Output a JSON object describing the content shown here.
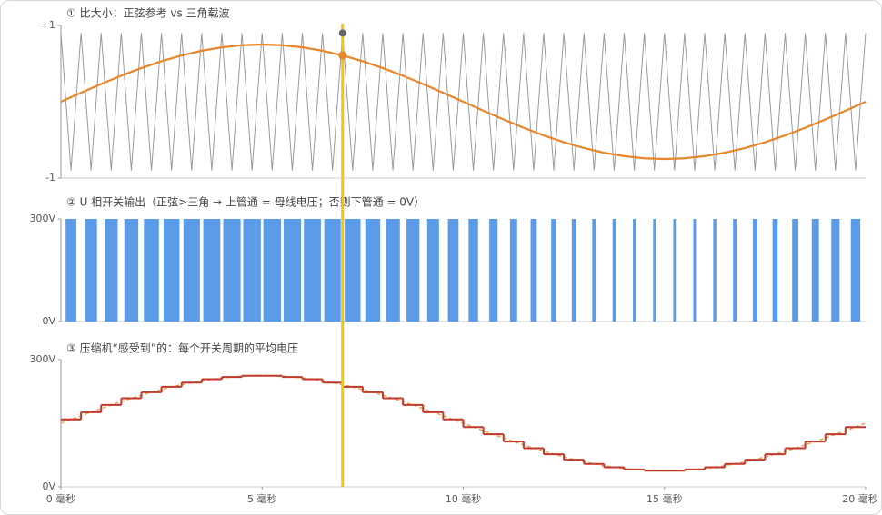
{
  "chart_data": [
    {
      "type": "line",
      "title": "① 比大小：正弦参考 vs 三角载波",
      "xlim": [
        0,
        20
      ],
      "ylim": [
        -1,
        1
      ],
      "yticks": [
        {
          "value": 1,
          "label": "+1"
        },
        -1
      ],
      "cursor_x": 7,
      "series": [
        {
          "color": "#9a9a9a",
          "x": [
            0,
            0.25,
            0.5,
            0.75,
            1,
            1.25,
            1.5,
            1.75,
            2,
            2.25,
            2.5,
            2.75,
            3,
            3.25,
            3.5,
            3.75,
            4,
            4.25,
            4.5,
            4.75,
            5,
            5.25,
            5.5,
            5.75,
            6,
            6.25,
            6.5,
            6.75,
            7,
            7.25,
            7.5,
            7.75,
            8,
            8.25,
            8.5,
            8.75,
            9,
            9.25,
            9.5,
            9.75,
            10,
            10.25,
            10.5,
            10.75,
            11,
            11.25,
            11.5,
            11.75,
            12,
            12.25,
            12.5,
            12.75,
            13,
            13.25,
            13.5,
            13.75,
            14,
            14.25,
            14.5,
            14.75,
            15,
            15.25,
            15.5,
            15.75,
            16,
            16.25,
            16.5,
            16.75,
            17,
            17.25,
            17.5,
            17.75,
            18,
            18.25,
            18.5,
            18.75,
            19,
            19.25,
            19.5,
            19.75,
            20
          ],
          "values": [
            0.9,
            -0.9,
            0.9,
            -0.9,
            0.9,
            -0.9,
            0.9,
            -0.9,
            0.9,
            -0.9,
            0.9,
            -0.9,
            0.9,
            -0.9,
            0.9,
            -0.9,
            0.9,
            -0.9,
            0.9,
            -0.9,
            0.9,
            -0.9,
            0.9,
            -0.9,
            0.9,
            -0.9,
            0.9,
            -0.9,
            0.9,
            -0.9,
            0.9,
            -0.9,
            0.9,
            -0.9,
            0.9,
            -0.9,
            0.9,
            -0.9,
            0.9,
            -0.9,
            0.9,
            -0.9,
            0.9,
            -0.9,
            0.9,
            -0.9,
            0.9,
            -0.9,
            0.9,
            -0.9,
            0.9,
            -0.9,
            0.9,
            -0.9,
            0.9,
            -0.9,
            0.9,
            -0.9,
            0.9,
            -0.9,
            0.9,
            -0.9,
            0.9,
            -0.9,
            0.9,
            -0.9,
            0.9,
            -0.9,
            0.9,
            -0.9,
            0.9,
            -0.9,
            0.9,
            -0.9,
            0.9,
            -0.9,
            0.9,
            -0.9,
            0.9,
            -0.9,
            0.9
          ]
        },
        {
          "color": "#e8862a",
          "x": [
            0,
            0.5,
            1,
            1.5,
            2,
            2.5,
            3,
            3.5,
            4,
            4.5,
            5,
            5.5,
            6,
            6.5,
            7,
            7.5,
            8,
            8.5,
            9,
            9.5,
            10,
            10.5,
            11,
            11.5,
            12,
            12.5,
            13,
            13.5,
            14,
            14.5,
            15,
            15.5,
            16,
            16.5,
            17,
            17.5,
            18,
            18.5,
            19,
            19.5,
            20
          ],
          "values": [
            0,
            0.117,
            0.232,
            0.341,
            0.441,
            0.53,
            0.607,
            0.668,
            0.713,
            0.741,
            0.75,
            0.741,
            0.713,
            0.668,
            0.607,
            0.53,
            0.441,
            0.341,
            0.232,
            0.117,
            0,
            -0.117,
            -0.232,
            -0.341,
            -0.441,
            -0.53,
            -0.607,
            -0.668,
            -0.713,
            -0.741,
            -0.75,
            -0.741,
            -0.713,
            -0.668,
            -0.607,
            -0.53,
            -0.441,
            -0.341,
            -0.232,
            -0.117,
            0
          ]
        }
      ]
    },
    {
      "type": "pulse",
      "title": "② U 相开关输出（正弦>三角 → 上管通 = 母线电压；否则下管通 = 0V）",
      "xlim": [
        0,
        20
      ],
      "ylim": [
        0,
        300
      ],
      "yticks": [
        {
          "value": 300,
          "label": "300V"
        },
        {
          "value": 0,
          "label": "0V"
        }
      ],
      "color": "#5b9be8",
      "x": [
        0.25,
        0.75,
        1.25,
        1.75,
        2.25,
        2.75,
        3.25,
        3.75,
        4.25,
        4.75,
        5.25,
        5.75,
        6.25,
        6.75,
        7.25,
        7.75,
        8.25,
        8.75,
        9.25,
        9.75,
        10.25,
        10.75,
        11.25,
        11.75,
        12.25,
        12.75,
        13.25,
        13.75,
        14.25,
        14.75,
        15.25,
        15.75,
        16.25,
        16.75,
        17.25,
        17.75,
        18.25,
        18.75,
        19.25,
        19.75
      ],
      "widths": [
        0.265,
        0.294,
        0.322,
        0.348,
        0.372,
        0.393,
        0.41,
        0.423,
        0.432,
        0.437,
        0.437,
        0.432,
        0.423,
        0.41,
        0.393,
        0.372,
        0.348,
        0.322,
        0.294,
        0.265,
        0.235,
        0.206,
        0.178,
        0.152,
        0.128,
        0.107,
        0.09,
        0.077,
        0.068,
        0.063,
        0.063,
        0.068,
        0.077,
        0.09,
        0.107,
        0.128,
        0.152,
        0.178,
        0.206,
        0.235
      ],
      "values": [
        300,
        300,
        300,
        300,
        300,
        300,
        300,
        300,
        300,
        300,
        300,
        300,
        300,
        300,
        300,
        300,
        300,
        300,
        300,
        300,
        300,
        300,
        300,
        300,
        300,
        300,
        300,
        300,
        300,
        300,
        300,
        300,
        300,
        300,
        300,
        300,
        300,
        300,
        300,
        300
      ]
    },
    {
      "type": "step",
      "title": "③ 压缩机“感受到”的：每个开关周期的平均电压",
      "xlim": [
        0,
        20
      ],
      "ylim": [
        0,
        300
      ],
      "yticks": [
        {
          "value": 300,
          "label": "300V"
        },
        {
          "value": 0,
          "label": "0V"
        }
      ],
      "xticks": [
        {
          "value": 0,
          "label": "0 毫秒"
        },
        {
          "value": 5,
          "label": "5 毫秒"
        },
        {
          "value": 10,
          "label": "10 毫秒"
        },
        {
          "value": 15,
          "label": "15 毫秒"
        },
        {
          "value": 20,
          "label": "20 毫秒"
        }
      ],
      "series": [
        {
          "color": "#c0392b",
          "x": [
            0,
            0.5,
            1,
            1.5,
            2,
            2.5,
            3,
            3.5,
            4,
            4.5,
            5,
            5.5,
            6,
            6.5,
            7,
            7.5,
            8,
            8.5,
            9,
            9.5,
            10,
            10.5,
            11,
            11.5,
            12,
            12.5,
            13,
            13.5,
            14,
            14.5,
            15,
            15.5,
            16,
            16.5,
            17,
            17.5,
            18,
            18.5,
            19,
            19.5
          ],
          "values": [
            159,
            176,
            193,
            209,
            223,
            236,
            246,
            254,
            259,
            262,
            262,
            259,
            254,
            246,
            236,
            223,
            209,
            193,
            176,
            159,
            141,
            124,
            107,
            91,
            77,
            64,
            54,
            46,
            41,
            38,
            38,
            41,
            46,
            54,
            64,
            77,
            91,
            107,
            124,
            141
          ]
        },
        {
          "color": "#f0a050",
          "x": [
            0,
            0.5,
            1,
            1.5,
            2,
            2.5,
            3,
            3.5,
            4,
            4.5,
            5,
            5.5,
            6,
            6.5,
            7,
            7.5,
            8,
            8.5,
            9,
            9.5,
            10,
            10.5,
            11,
            11.5,
            12,
            12.5,
            13,
            13.5,
            14,
            14.5,
            15,
            15.5,
            16,
            16.5,
            17,
            17.5,
            18,
            18.5,
            19,
            19.5,
            20
          ],
          "values": [
            150,
            167.6,
            184.8,
            201.1,
            216.1,
            229.5,
            241,
            250.2,
            257,
            261.1,
            262.5,
            261.1,
            257,
            250.2,
            241,
            229.5,
            216.1,
            201.1,
            184.8,
            167.6,
            150,
            132.4,
            115.2,
            98.9,
            83.9,
            70.5,
            59,
            49.8,
            43,
            38.9,
            37.5,
            38.9,
            43,
            49.8,
            59,
            70.5,
            83.9,
            98.9,
            115.2,
            132.4,
            150
          ]
        }
      ]
    }
  ]
}
